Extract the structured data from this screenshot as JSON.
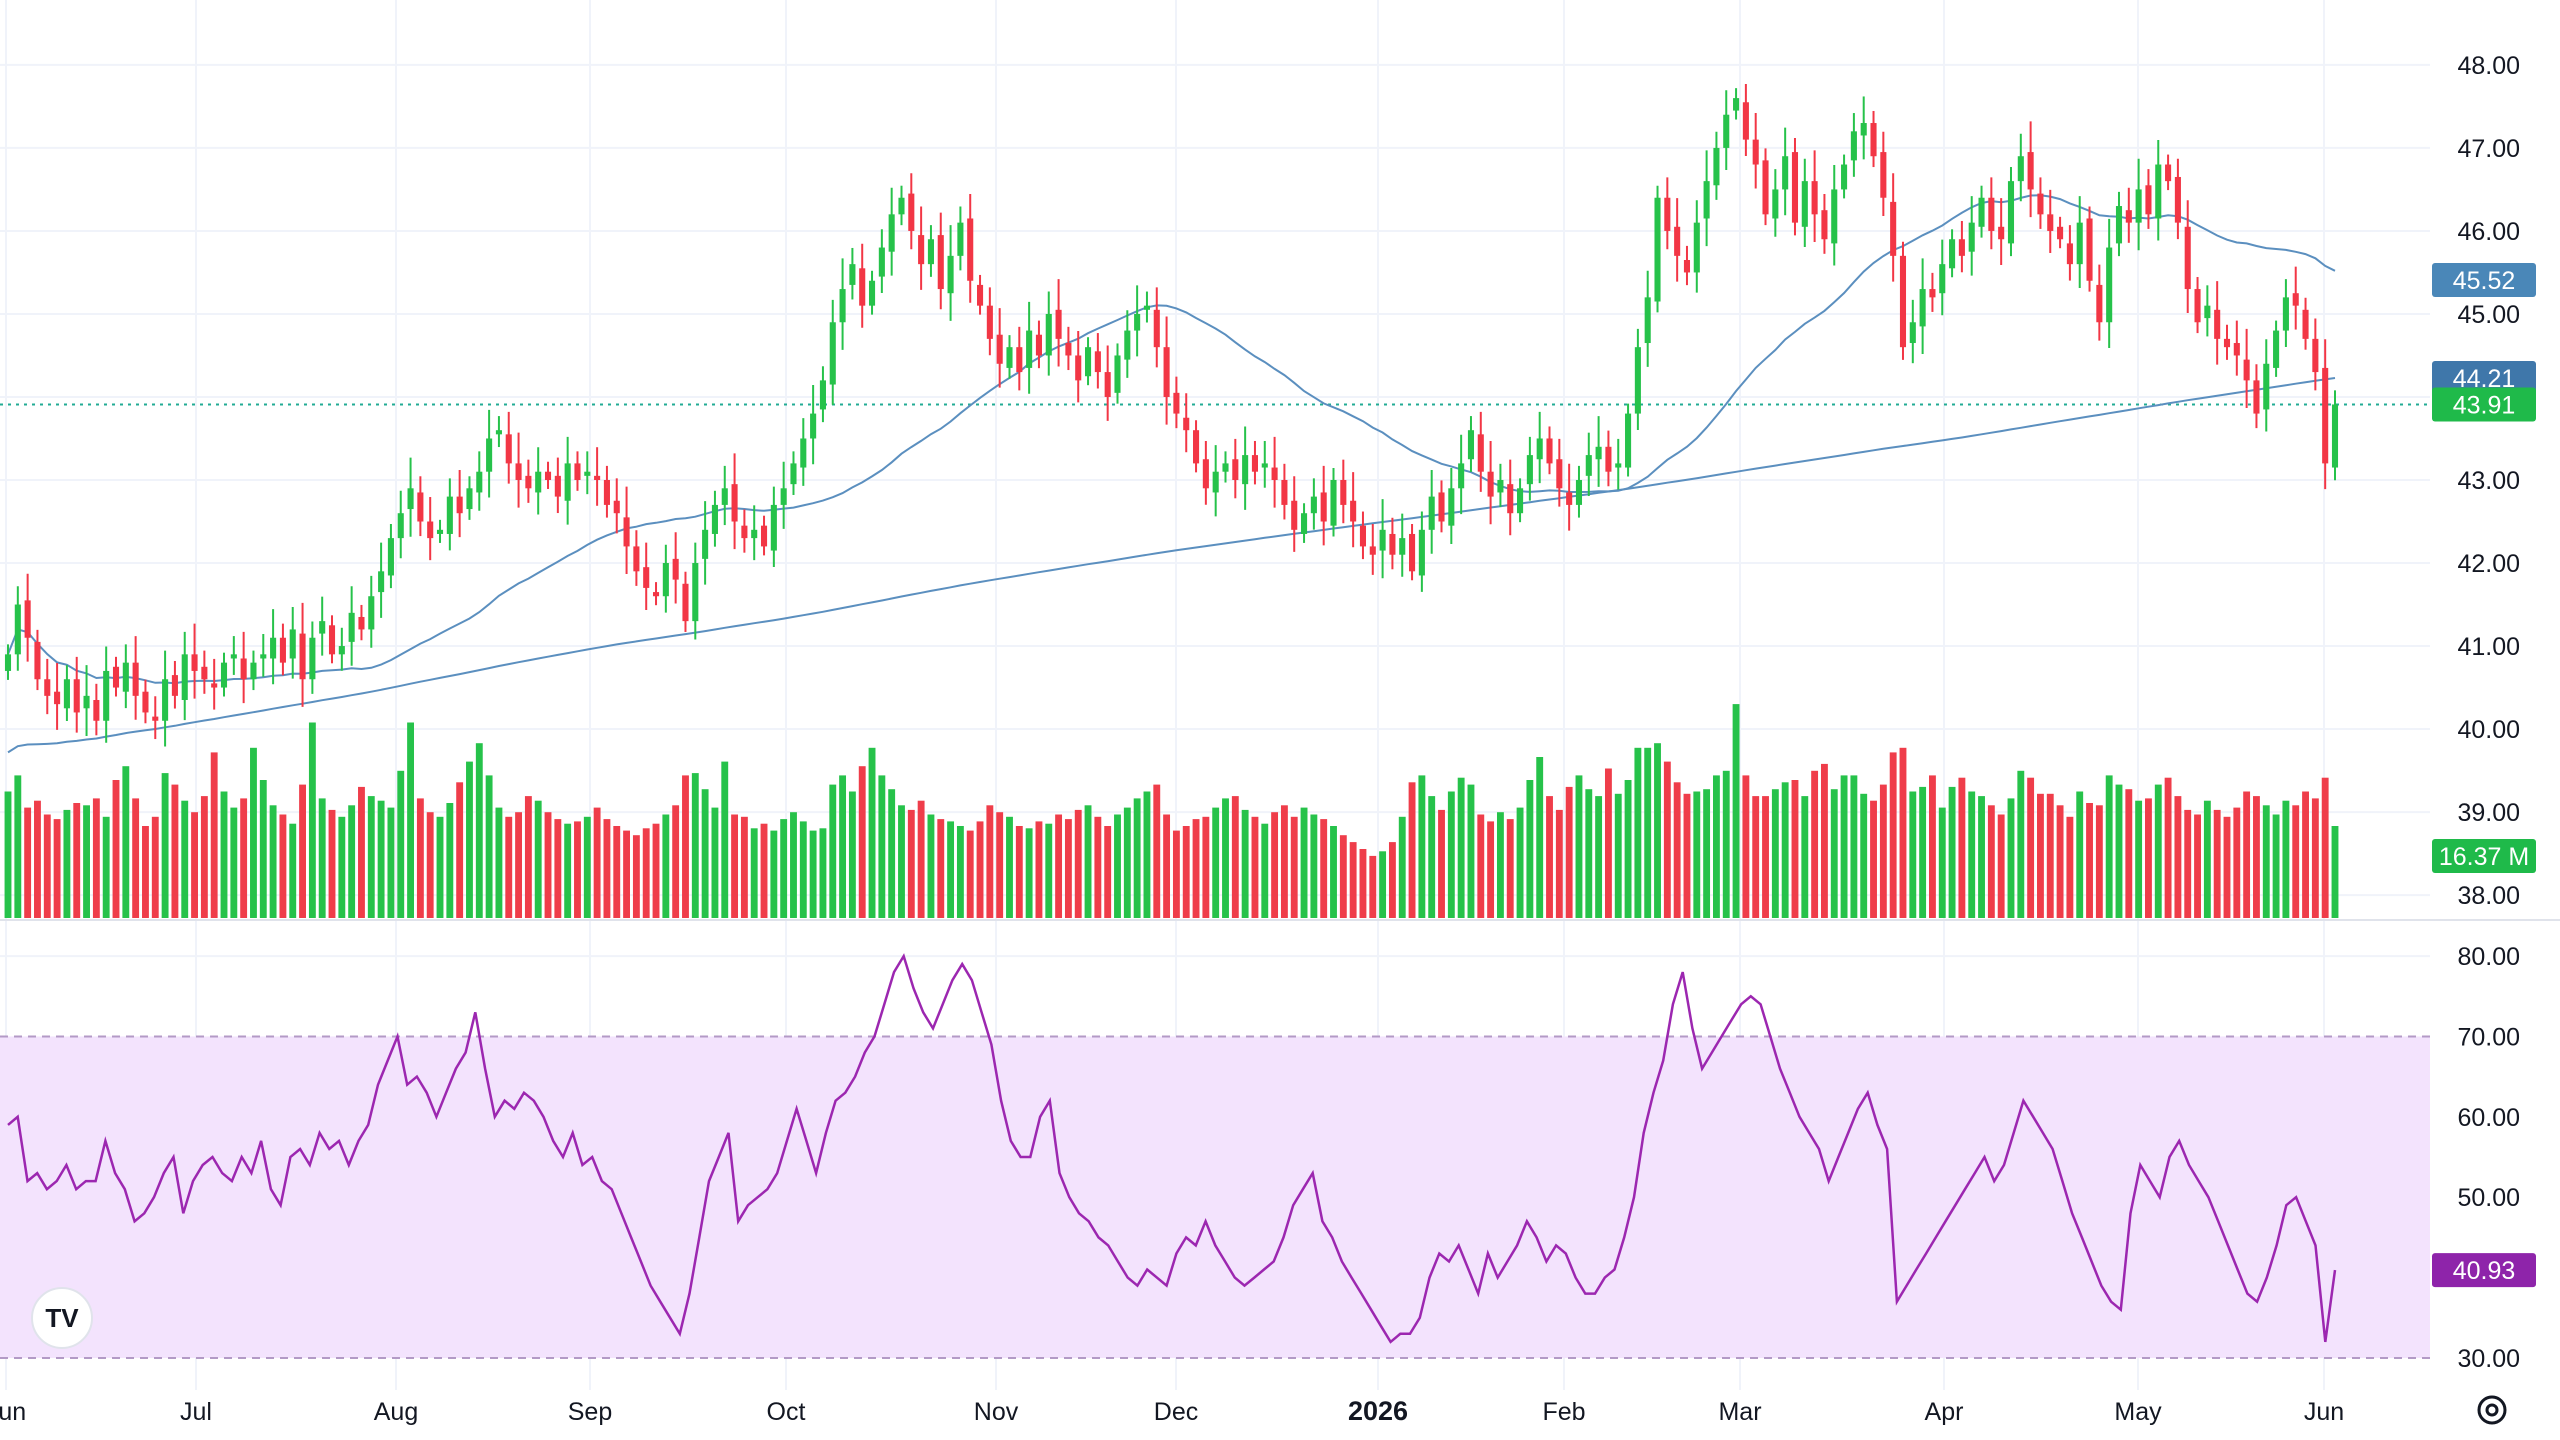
{
  "chart_data": [
    {
      "type": "candlestick",
      "panel": "price",
      "ylim": [
        37.7,
        48.3
      ],
      "price_ticks": [
        "48.00",
        "47.00",
        "46.00",
        "45.00",
        "44.00",
        "43.00",
        "42.00",
        "41.00",
        "40.00",
        "39.00",
        "38.00"
      ],
      "x_labels": [
        "Jun",
        "Jul",
        "Aug",
        "Sep",
        "Oct",
        "Nov",
        "Dec",
        "2026",
        "Feb",
        "Mar",
        "Apr",
        "May",
        "Jun"
      ],
      "grid": true,
      "last_price": 43.91,
      "ohlc_close": [
        40.9,
        41.5,
        41.1,
        40.6,
        40.4,
        40.3,
        40.6,
        40.2,
        40.4,
        40.1,
        40.7,
        40.5,
        40.8,
        40.4,
        40.2,
        40.1,
        40.6,
        40.4,
        40.9,
        40.7,
        40.6,
        40.5,
        40.8,
        40.9,
        40.6,
        40.8,
        40.9,
        41.1,
        40.8,
        41.2,
        40.6,
        41.1,
        41.3,
        40.9,
        41.0,
        41.4,
        41.2,
        41.6,
        41.9,
        42.3,
        42.6,
        42.9,
        42.5,
        42.3,
        42.4,
        42.8,
        42.6,
        42.9,
        43.1,
        43.5,
        43.6,
        43.2,
        43.0,
        42.9,
        43.1,
        43.0,
        42.8,
        43.2,
        43.0,
        43.1,
        43.0,
        42.7,
        42.6,
        42.2,
        41.9,
        41.7,
        41.6,
        42.0,
        41.8,
        41.3,
        42.0,
        42.4,
        42.7,
        42.9,
        42.5,
        42.3,
        42.4,
        42.2,
        42.7,
        42.9,
        43.2,
        43.5,
        43.8,
        44.2,
        44.9,
        45.3,
        45.6,
        45.1,
        45.4,
        45.8,
        46.2,
        46.4,
        46.0,
        45.6,
        45.9,
        45.3,
        45.7,
        46.1,
        45.4,
        45.1,
        44.7,
        44.4,
        44.6,
        44.3,
        44.8,
        44.5,
        45.0,
        44.7,
        44.5,
        44.2,
        44.6,
        44.3,
        44.0,
        44.5,
        44.8,
        45.0,
        45.1,
        44.6,
        44.0,
        43.8,
        43.6,
        43.2,
        42.9,
        43.1,
        43.2,
        43.0,
        43.3,
        43.1,
        43.2,
        43.0,
        42.7,
        42.4,
        42.6,
        42.8,
        42.5,
        43.0,
        42.7,
        42.5,
        42.2,
        42.1,
        42.4,
        42.1,
        42.3,
        41.9,
        42.4,
        42.8,
        42.5,
        42.9,
        43.2,
        43.6,
        43.1,
        42.8,
        43.0,
        42.6,
        42.9,
        43.3,
        43.5,
        43.2,
        42.9,
        42.7,
        43.0,
        43.3,
        43.4,
        43.1,
        43.2,
        43.8,
        44.6,
        45.2,
        46.4,
        46.0,
        45.7,
        45.5,
        46.1,
        46.6,
        47.0,
        47.4,
        47.6,
        47.1,
        46.8,
        46.2,
        46.5,
        46.9,
        46.1,
        46.6,
        46.2,
        45.9,
        46.5,
        46.8,
        47.2,
        47.3,
        46.9,
        46.4,
        45.7,
        44.6,
        44.9,
        45.3,
        45.2,
        45.6,
        45.9,
        45.7,
        46.1,
        46.4,
        46.0,
        45.9,
        46.6,
        46.9,
        46.5,
        46.2,
        46.0,
        45.9,
        45.6,
        46.1,
        45.4,
        44.9,
        45.8,
        46.3,
        46.1,
        46.5,
        46.2,
        46.8,
        46.6,
        46.1,
        45.3,
        44.9,
        45.1,
        44.7,
        44.6,
        44.5,
        44.2,
        43.8,
        44.4,
        44.8,
        45.2,
        45.1,
        44.7,
        44.3,
        43.2,
        43.91
      ],
      "sma_50": {
        "start": 40.5,
        "end": 45.52,
        "last": 45.52
      },
      "sma_200": {
        "start": 39.5,
        "end": 44.21,
        "last": 44.21
      }
    },
    {
      "type": "bar",
      "panel": "volume",
      "last_value_label": "16.37 M",
      "bars_relative": [
        0.55,
        0.62,
        0.48,
        0.51,
        0.45,
        0.43,
        0.47,
        0.5,
        0.49,
        0.52,
        0.44,
        0.6,
        0.66,
        0.52,
        0.4,
        0.44,
        0.63,
        0.58,
        0.51,
        0.46,
        0.53,
        0.72,
        0.55,
        0.48,
        0.52,
        0.74,
        0.6,
        0.49,
        0.45,
        0.41,
        0.58,
        0.85,
        0.52,
        0.47,
        0.44,
        0.49,
        0.57,
        0.53,
        0.51,
        0.48,
        0.64,
        0.85,
        0.52,
        0.46,
        0.44,
        0.5,
        0.59,
        0.68,
        0.76,
        0.62,
        0.48,
        0.44,
        0.46,
        0.53,
        0.51,
        0.46,
        0.43,
        0.41,
        0.42,
        0.44,
        0.48,
        0.43,
        0.4,
        0.38,
        0.36,
        0.39,
        0.41,
        0.45,
        0.49,
        0.62,
        0.63,
        0.56,
        0.48,
        0.68,
        0.45,
        0.44,
        0.39,
        0.41,
        0.38,
        0.43,
        0.46,
        0.42,
        0.38,
        0.39,
        0.58,
        0.62,
        0.55,
        0.66,
        0.74,
        0.62,
        0.56,
        0.49,
        0.47,
        0.51,
        0.45,
        0.43,
        0.42,
        0.4,
        0.38,
        0.42,
        0.49,
        0.46,
        0.44,
        0.4,
        0.39,
        0.42,
        0.41,
        0.45,
        0.43,
        0.47,
        0.49,
        0.44,
        0.4,
        0.45,
        0.48,
        0.52,
        0.55,
        0.58,
        0.45,
        0.38,
        0.4,
        0.43,
        0.44,
        0.48,
        0.52,
        0.53,
        0.47,
        0.44,
        0.41,
        0.46,
        0.49,
        0.44,
        0.48,
        0.45,
        0.43,
        0.4,
        0.36,
        0.33,
        0.3,
        0.27,
        0.29,
        0.33,
        0.44,
        0.59,
        0.62,
        0.53,
        0.47,
        0.55,
        0.61,
        0.58,
        0.45,
        0.42,
        0.46,
        0.43,
        0.48,
        0.6,
        0.7,
        0.53,
        0.47,
        0.57,
        0.62,
        0.56,
        0.53,
        0.65,
        0.54,
        0.6,
        0.74,
        0.74,
        0.76,
        0.68,
        0.59,
        0.54,
        0.55,
        0.56,
        0.62,
        0.64,
        0.93,
        0.62,
        0.53,
        0.53,
        0.56,
        0.59,
        0.6,
        0.53,
        0.64,
        0.67,
        0.56,
        0.62,
        0.62,
        0.54,
        0.51,
        0.58,
        0.72,
        0.74,
        0.55,
        0.57,
        0.62,
        0.48,
        0.57,
        0.61,
        0.55,
        0.53,
        0.49,
        0.45,
        0.52,
        0.64,
        0.61,
        0.54,
        0.54,
        0.49,
        0.44,
        0.55,
        0.5,
        0.49,
        0.62,
        0.58,
        0.56,
        0.51,
        0.52,
        0.58,
        0.61,
        0.53,
        0.47,
        0.45,
        0.51,
        0.47,
        0.44,
        0.48,
        0.55,
        0.53,
        0.49,
        0.45,
        0.51,
        0.49,
        0.55,
        0.52,
        0.61,
        0.4
      ]
    },
    {
      "type": "line",
      "panel": "rsi",
      "ylim": [
        28.5,
        82
      ],
      "ticks": [
        "80.00",
        "70.00",
        "60.00",
        "50.00",
        "40.00",
        "30.00"
      ],
      "band": [
        30,
        70
      ],
      "last_value": "40.93",
      "values": [
        59,
        60,
        52,
        53,
        51,
        52,
        54,
        51,
        52,
        52,
        57,
        53,
        51,
        47,
        48,
        50,
        53,
        55,
        48,
        52,
        54,
        55,
        53,
        52,
        55,
        53,
        57,
        51,
        49,
        55,
        56,
        54,
        58,
        56,
        57,
        54,
        57,
        59,
        64,
        67,
        70,
        64,
        65,
        63,
        60,
        63,
        66,
        68,
        73,
        66,
        60,
        62,
        61,
        63,
        62,
        60,
        57,
        55,
        58,
        54,
        55,
        52,
        51,
        48,
        45,
        42,
        39,
        37,
        35,
        33,
        38,
        45,
        52,
        55,
        58,
        47,
        49,
        50,
        51,
        53,
        57,
        61,
        57,
        53,
        58,
        62,
        63,
        65,
        68,
        70,
        74,
        78,
        80,
        76,
        73,
        71,
        74,
        77,
        79,
        77,
        73,
        69,
        62,
        57,
        55,
        55,
        60,
        62,
        53,
        50,
        48,
        47,
        45,
        44,
        42,
        40,
        39,
        41,
        40,
        39,
        43,
        45,
        44,
        47,
        44,
        42,
        40,
        39,
        40,
        41,
        42,
        45,
        49,
        51,
        53,
        47,
        45,
        42,
        40,
        38,
        36,
        34,
        32,
        33,
        33,
        35,
        40,
        43,
        42,
        44,
        41,
        38,
        43,
        40,
        42,
        44,
        47,
        45,
        42,
        44,
        43,
        40,
        38,
        38,
        40,
        41,
        45,
        50,
        58,
        63,
        67,
        74,
        78,
        71,
        66,
        68,
        70,
        72,
        74,
        75,
        74,
        70,
        66,
        63,
        60,
        58,
        56,
        52,
        55,
        58,
        61,
        63,
        59,
        56,
        37,
        39,
        41,
        43,
        45,
        47,
        49,
        51,
        53,
        55,
        52,
        54,
        58,
        62,
        60,
        58,
        56,
        52,
        48,
        45,
        42,
        39,
        37,
        36,
        48,
        54,
        52,
        50,
        55,
        57,
        54,
        52,
        50,
        47,
        44,
        41,
        38,
        37,
        40,
        44,
        49,
        50,
        47,
        44,
        32,
        40.93
      ]
    }
  ],
  "colors": {
    "up": "#22ab94",
    "up_vol": "#26c24a",
    "down": "#f23645",
    "down_vol": "#ef3d4a",
    "sma": "#5b8fbf",
    "rsi_line": "#9c27b0",
    "rsi_band": "#f3e3fd",
    "badge_price": "#1fba4a",
    "badge_sma50": "#4a87b8",
    "badge_sma200": "#3f77aa",
    "badge_vol": "#1fba4a",
    "badge_rsi": "#8e24aa",
    "grid": "#f0f3fa",
    "text": "#131722"
  },
  "badges": {
    "sma50": "45.52",
    "sma200": "44.21",
    "price": "43.91",
    "volume": "16.37 M",
    "rsi": "40.93"
  },
  "logo": "TV",
  "icons": {
    "settings": "gear-icon"
  }
}
